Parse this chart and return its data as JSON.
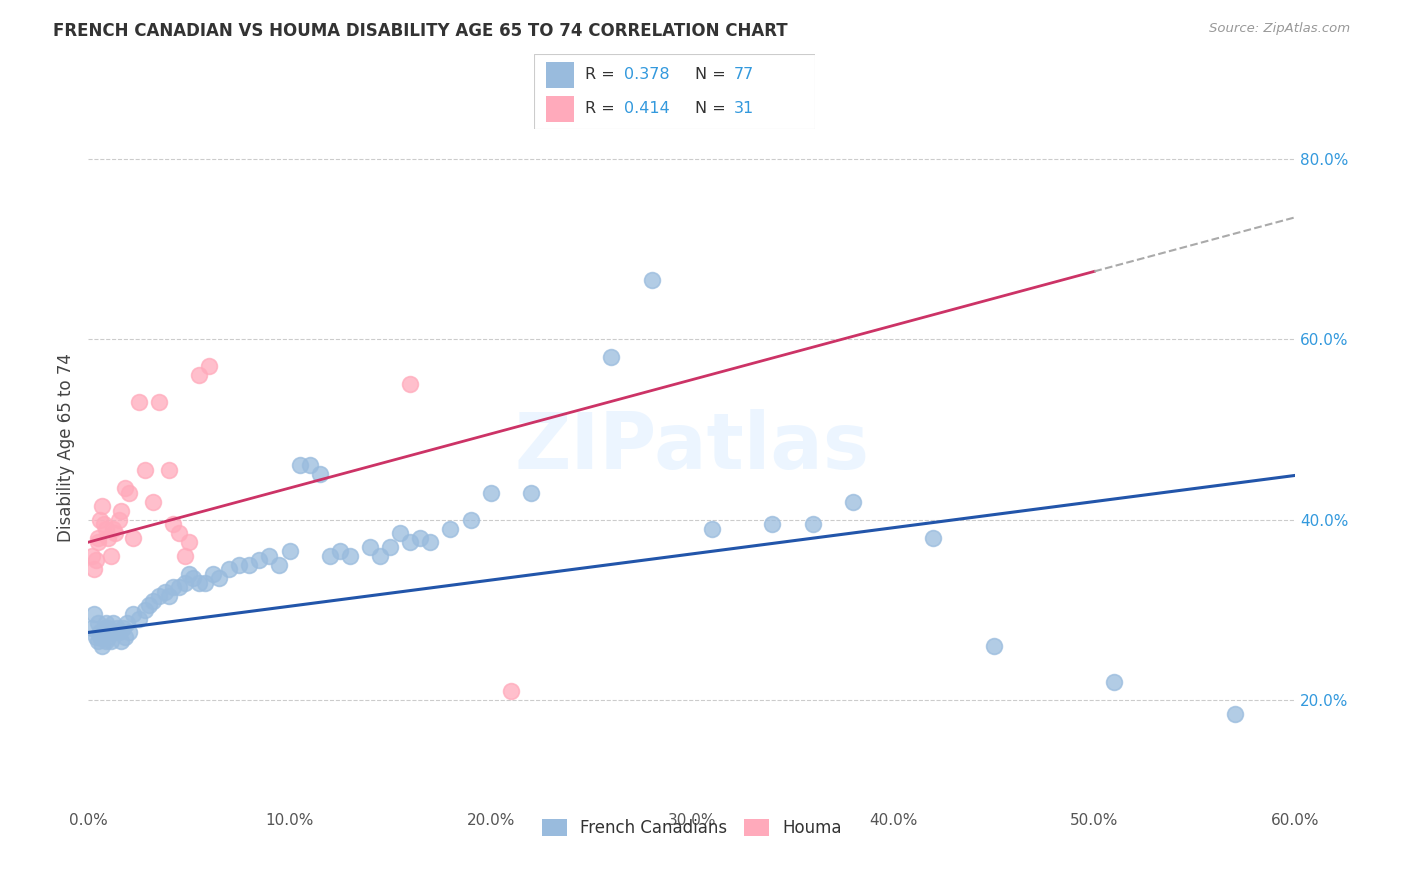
{
  "title": "FRENCH CANADIAN VS HOUMA DISABILITY AGE 65 TO 74 CORRELATION CHART",
  "source": "Source: ZipAtlas.com",
  "ylabel": "Disability Age 65 to 74",
  "watermark": "ZIPatlas",
  "xlim": [
    0.0,
    0.6
  ],
  "ylim": [
    0.08,
    0.88
  ],
  "x_tick_vals": [
    0.0,
    0.1,
    0.2,
    0.3,
    0.4,
    0.5,
    0.6
  ],
  "y_tick_vals": [
    0.2,
    0.4,
    0.6,
    0.8
  ],
  "blue_scatter_color": "#99BBDD",
  "pink_scatter_color": "#FFAABB",
  "blue_line_color": "#2255AA",
  "pink_line_color": "#CC3366",
  "gray_dash_color": "#AAAAAA",
  "legend_r1": "R = 0.378",
  "legend_n1": "N = 77",
  "legend_r2": "R = 0.414",
  "legend_n2": "N = 31",
  "blue_intercept": 0.275,
  "blue_slope": 0.29,
  "pink_intercept": 0.375,
  "pink_slope": 0.6,
  "french_canadians_x": [
    0.002,
    0.003,
    0.004,
    0.005,
    0.005,
    0.006,
    0.006,
    0.007,
    0.007,
    0.008,
    0.008,
    0.009,
    0.009,
    0.01,
    0.01,
    0.011,
    0.011,
    0.012,
    0.013,
    0.014,
    0.015,
    0.016,
    0.017,
    0.018,
    0.019,
    0.02,
    0.022,
    0.025,
    0.028,
    0.03,
    0.032,
    0.035,
    0.038,
    0.04,
    0.042,
    0.045,
    0.048,
    0.05,
    0.052,
    0.055,
    0.058,
    0.062,
    0.065,
    0.07,
    0.075,
    0.08,
    0.085,
    0.09,
    0.095,
    0.1,
    0.105,
    0.11,
    0.115,
    0.12,
    0.125,
    0.13,
    0.14,
    0.145,
    0.15,
    0.155,
    0.16,
    0.165,
    0.17,
    0.18,
    0.19,
    0.2,
    0.22,
    0.26,
    0.28,
    0.31,
    0.34,
    0.36,
    0.38,
    0.42,
    0.45,
    0.51,
    0.57
  ],
  "french_canadians_y": [
    0.28,
    0.295,
    0.27,
    0.285,
    0.265,
    0.27,
    0.275,
    0.26,
    0.275,
    0.28,
    0.275,
    0.265,
    0.285,
    0.27,
    0.28,
    0.275,
    0.265,
    0.285,
    0.275,
    0.28,
    0.275,
    0.265,
    0.28,
    0.27,
    0.285,
    0.275,
    0.295,
    0.29,
    0.3,
    0.305,
    0.31,
    0.315,
    0.32,
    0.315,
    0.325,
    0.325,
    0.33,
    0.34,
    0.335,
    0.33,
    0.33,
    0.34,
    0.335,
    0.345,
    0.35,
    0.35,
    0.355,
    0.36,
    0.35,
    0.365,
    0.46,
    0.46,
    0.45,
    0.36,
    0.365,
    0.36,
    0.37,
    0.36,
    0.37,
    0.385,
    0.375,
    0.38,
    0.375,
    0.39,
    0.4,
    0.43,
    0.43,
    0.58,
    0.665,
    0.39,
    0.395,
    0.395,
    0.42,
    0.38,
    0.26,
    0.22,
    0.185
  ],
  "houma_x": [
    0.002,
    0.003,
    0.004,
    0.005,
    0.005,
    0.006,
    0.007,
    0.008,
    0.009,
    0.01,
    0.011,
    0.012,
    0.013,
    0.015,
    0.016,
    0.018,
    0.02,
    0.022,
    0.025,
    0.028,
    0.032,
    0.035,
    0.04,
    0.042,
    0.045,
    0.048,
    0.05,
    0.055,
    0.06,
    0.16,
    0.21
  ],
  "houma_y": [
    0.36,
    0.345,
    0.355,
    0.375,
    0.38,
    0.4,
    0.415,
    0.395,
    0.39,
    0.38,
    0.36,
    0.39,
    0.385,
    0.4,
    0.41,
    0.435,
    0.43,
    0.38,
    0.53,
    0.455,
    0.42,
    0.53,
    0.455,
    0.395,
    0.385,
    0.36,
    0.375,
    0.56,
    0.57,
    0.55,
    0.21
  ]
}
